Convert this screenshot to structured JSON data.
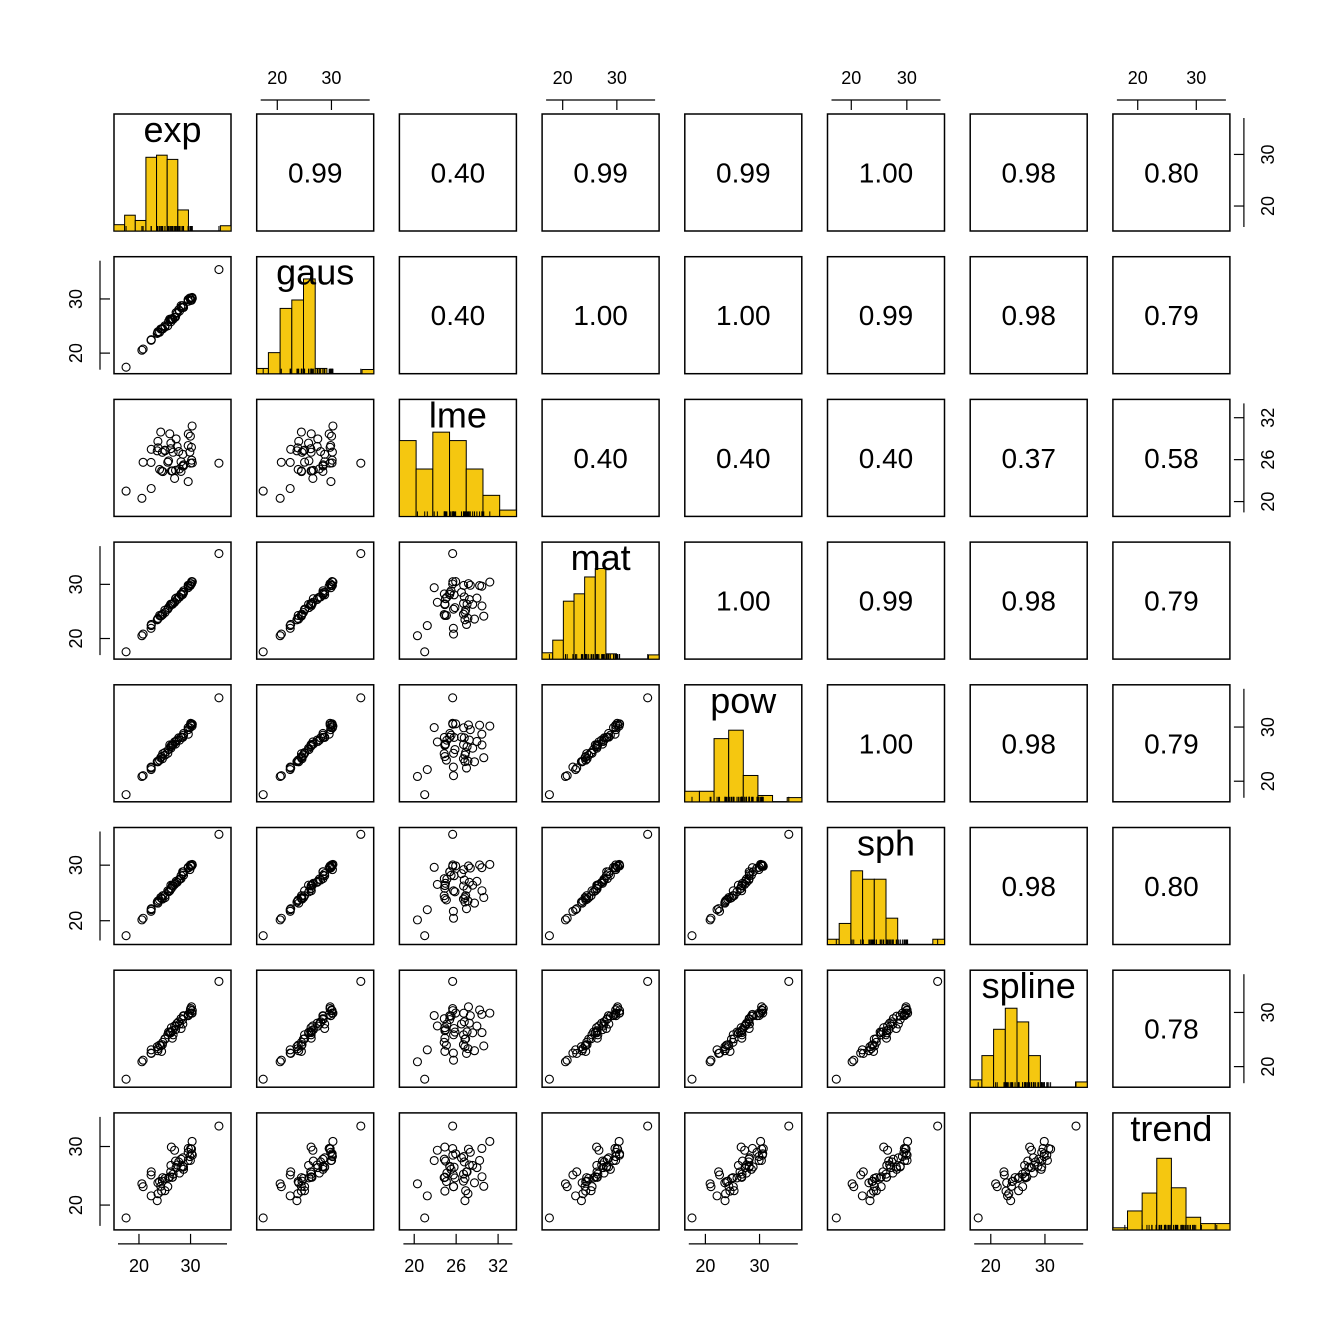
{
  "chart_data": {
    "type": "scatter",
    "title": "",
    "variables": [
      "exp",
      "gaus",
      "lme",
      "mat",
      "pow",
      "sph",
      "spline",
      "trend"
    ],
    "ranges": {
      "exp": [
        16,
        37
      ],
      "gaus": [
        17,
        37
      ],
      "lme": [
        18.5,
        34
      ],
      "mat": [
        17,
        37
      ],
      "pow": [
        17,
        37
      ],
      "sph": [
        16.5,
        36
      ],
      "spline": [
        17,
        37
      ],
      "trend": [
        16.5,
        35
      ]
    },
    "correlations": [
      [
        "",
        "0.99",
        "0.40",
        "0.99",
        "0.99",
        "1.00",
        "0.98",
        "0.80"
      ],
      [
        "",
        "",
        "0.40",
        "1.00",
        "1.00",
        "0.99",
        "0.98",
        "0.79"
      ],
      [
        "",
        "",
        "",
        "0.40",
        "0.40",
        "0.40",
        "0.37",
        "0.58"
      ],
      [
        "",
        "",
        "",
        "",
        "1.00",
        "0.99",
        "0.98",
        "0.79"
      ],
      [
        "",
        "",
        "",
        "",
        "",
        "1.00",
        "0.98",
        "0.79"
      ],
      [
        "",
        "",
        "",
        "",
        "",
        "",
        "0.98",
        "0.80"
      ],
      [
        "",
        "",
        "",
        "",
        "",
        "",
        "",
        "0.78"
      ],
      [
        "",
        "",
        "",
        "",
        "",
        "",
        "",
        ""
      ]
    ],
    "histograms": {
      "exp": [
        0.06,
        0.15,
        0.1,
        0.7,
        0.72,
        0.68,
        0.2,
        0,
        0,
        0,
        0.05
      ],
      "gaus": [
        0.05,
        0.2,
        0.62,
        0.7,
        0.9,
        0.05,
        0,
        0,
        0,
        0.04
      ],
      "lme": [
        0.72,
        0.45,
        0.8,
        0.72,
        0.45,
        0.2,
        0.06
      ],
      "mat": [
        0.06,
        0.18,
        0.55,
        0.62,
        0.78,
        0.86,
        0.05,
        0,
        0,
        0,
        0.04
      ],
      "pow": [
        0.1,
        0.1,
        0.6,
        0.68,
        0.25,
        0.06,
        0,
        0.04
      ],
      "sph": [
        0.05,
        0.2,
        0.7,
        0.62,
        0.62,
        0.25,
        0,
        0,
        0,
        0.05
      ],
      "spline": [
        0.07,
        0.3,
        0.55,
        0.75,
        0.62,
        0.3,
        0,
        0,
        0,
        0.05
      ],
      "trend": [
        0.02,
        0.18,
        0.35,
        0.68,
        0.4,
        0.12,
        0.06,
        0.06
      ]
    },
    "top_axis_ticks": {
      "gaus": [
        "20",
        "30"
      ],
      "mat": [
        "20",
        "30"
      ],
      "sph": [
        "20",
        "30"
      ],
      "trend": [
        "20",
        "30"
      ]
    },
    "bottom_axis_ticks": {
      "exp": [
        "20",
        "30"
      ],
      "lme": [
        "20",
        "26",
        "32"
      ],
      "pow": [
        "20",
        "30"
      ],
      "spline": [
        "20",
        "30"
      ]
    },
    "left_axis_ticks": {
      "gaus": [
        "20",
        "30"
      ],
      "mat": [
        "20",
        "30"
      ],
      "sph": [
        "20",
        "30"
      ],
      "trend": [
        "20",
        "30"
      ]
    },
    "right_axis_ticks": {
      "exp": [
        "20",
        "30"
      ],
      "lme": [
        "20",
        "26",
        "32"
      ],
      "pow": [
        "20",
        "30"
      ],
      "spline": [
        "20",
        "30"
      ]
    },
    "bar_color": "#f5c710",
    "n_points": 48
  }
}
